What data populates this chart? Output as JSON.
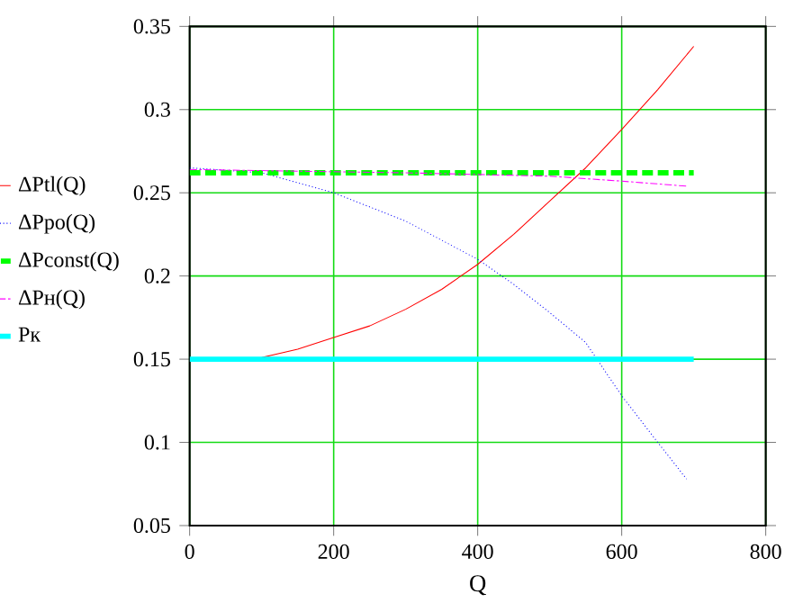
{
  "chart_data": {
    "type": "line",
    "xlabel": "Q",
    "xlim": [
      0,
      800
    ],
    "xticks": [
      0,
      200,
      400,
      600,
      800
    ],
    "ylim": [
      0.05,
      0.35
    ],
    "yticks": [
      0.05,
      0.1,
      0.15,
      0.2,
      0.25,
      0.3,
      0.35
    ],
    "grid": true,
    "legend": "left",
    "marker": "none",
    "series": [
      {
        "name": "ΔPtl(Q)",
        "color": "#ff0000",
        "line_style": "solid",
        "x": [
          0,
          100,
          150,
          200,
          250,
          300,
          350,
          400,
          450,
          500,
          550,
          600,
          650,
          700
        ],
        "values": [
          0.149,
          0.151,
          0.156,
          0.163,
          0.17,
          0.18,
          0.192,
          0.207,
          0.225,
          0.245,
          0.265,
          0.288,
          0.312,
          0.338
        ]
      },
      {
        "name": "ΔPpo(Q)",
        "color": "#0000ff",
        "line_style": "dotted",
        "x": [
          0,
          100,
          200,
          300,
          400,
          450,
          500,
          550,
          600,
          650,
          690
        ],
        "values": [
          0.265,
          0.262,
          0.25,
          0.233,
          0.21,
          0.195,
          0.178,
          0.16,
          0.128,
          0.1,
          0.078
        ]
      },
      {
        "name": "ΔPconst(Q)",
        "color": "#00ff00",
        "line_style": "dashed",
        "x": [
          0,
          700
        ],
        "values": [
          0.262,
          0.262
        ]
      },
      {
        "name": "ΔPн(Q)",
        "color": "#ff00ff",
        "line_style": "dashdot",
        "x": [
          0,
          300,
          500,
          600,
          690
        ],
        "values": [
          0.264,
          0.262,
          0.26,
          0.257,
          0.254
        ]
      },
      {
        "name": "Pк",
        "color": "#00ffff",
        "line_style": "solid",
        "x": [
          0,
          700
        ],
        "values": [
          0.15,
          0.15
        ]
      }
    ]
  }
}
